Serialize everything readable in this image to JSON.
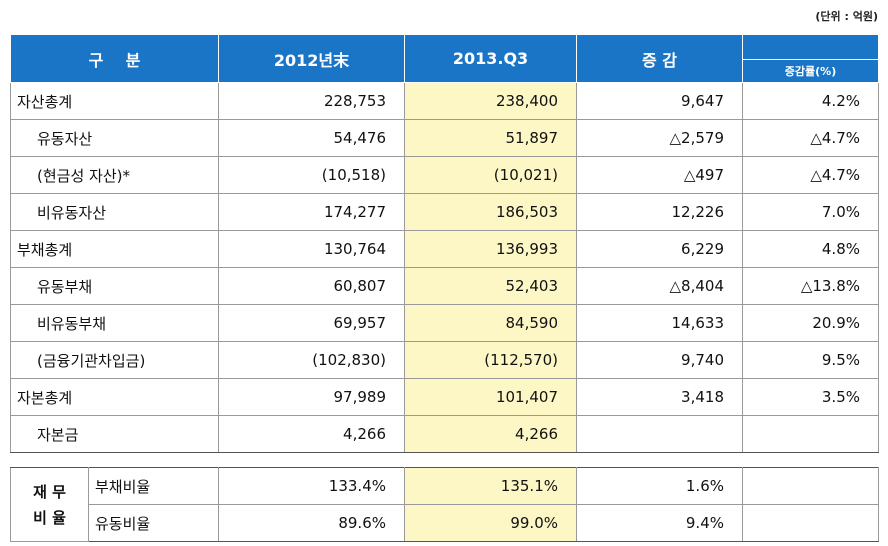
{
  "unit_label": "(단위 : 억원)",
  "header": {
    "category": "구    분",
    "col_2012": "2012년末",
    "col_2013": "2013.Q3",
    "col_change": "증 감",
    "col_change_rate": "증감률(%)"
  },
  "rows": [
    {
      "label": "자산총계",
      "indent": false,
      "v2012": "228,753",
      "v2013": "238,400",
      "change": "9,647",
      "rate": "4.2%"
    },
    {
      "label": "유동자산",
      "indent": true,
      "v2012": "54,476",
      "v2013": "51,897",
      "change": "△2,579",
      "rate": "△4.7%"
    },
    {
      "label": "(현금성 자산)*",
      "indent": true,
      "v2012": "(10,518)",
      "v2013": "(10,021)",
      "change": "△497",
      "rate": "△4.7%"
    },
    {
      "label": "비유동자산",
      "indent": true,
      "v2012": "174,277",
      "v2013": "186,503",
      "change": "12,226",
      "rate": "7.0%"
    },
    {
      "label": "부채총계",
      "indent": false,
      "v2012": "130,764",
      "v2013": "136,993",
      "change": "6,229",
      "rate": "4.8%"
    },
    {
      "label": "유동부채",
      "indent": true,
      "v2012": "60,807",
      "v2013": "52,403",
      "change": "△8,404",
      "rate": "△13.8%"
    },
    {
      "label": "비유동부채",
      "indent": true,
      "v2012": "69,957",
      "v2013": "84,590",
      "change": "14,633",
      "rate": "20.9%"
    },
    {
      "label": "(금융기관차입금)",
      "indent": true,
      "v2012": "(102,830)",
      "v2013": "(112,570)",
      "change": "9,740",
      "rate": "9.5%"
    },
    {
      "label": "자본총계",
      "indent": false,
      "v2012": "97,989",
      "v2013": "101,407",
      "change": "3,418",
      "rate": "3.5%"
    },
    {
      "label": "자본금",
      "indent": true,
      "v2012": "4,266",
      "v2013": "4,266",
      "change": "",
      "rate": ""
    }
  ],
  "ratio": {
    "category": "재 무\n비 율",
    "rows": [
      {
        "label": "부채비율",
        "v2012": "133.4%",
        "v2013": "135.1%",
        "change": "1.6%",
        "rate": ""
      },
      {
        "label": "유동비율",
        "v2012": "89.6%",
        "v2013": "99.0%",
        "change": "9.4%",
        "rate": ""
      }
    ]
  },
  "colors": {
    "header_bg": "#1a75c7",
    "highlight": "#fdf7c6"
  }
}
